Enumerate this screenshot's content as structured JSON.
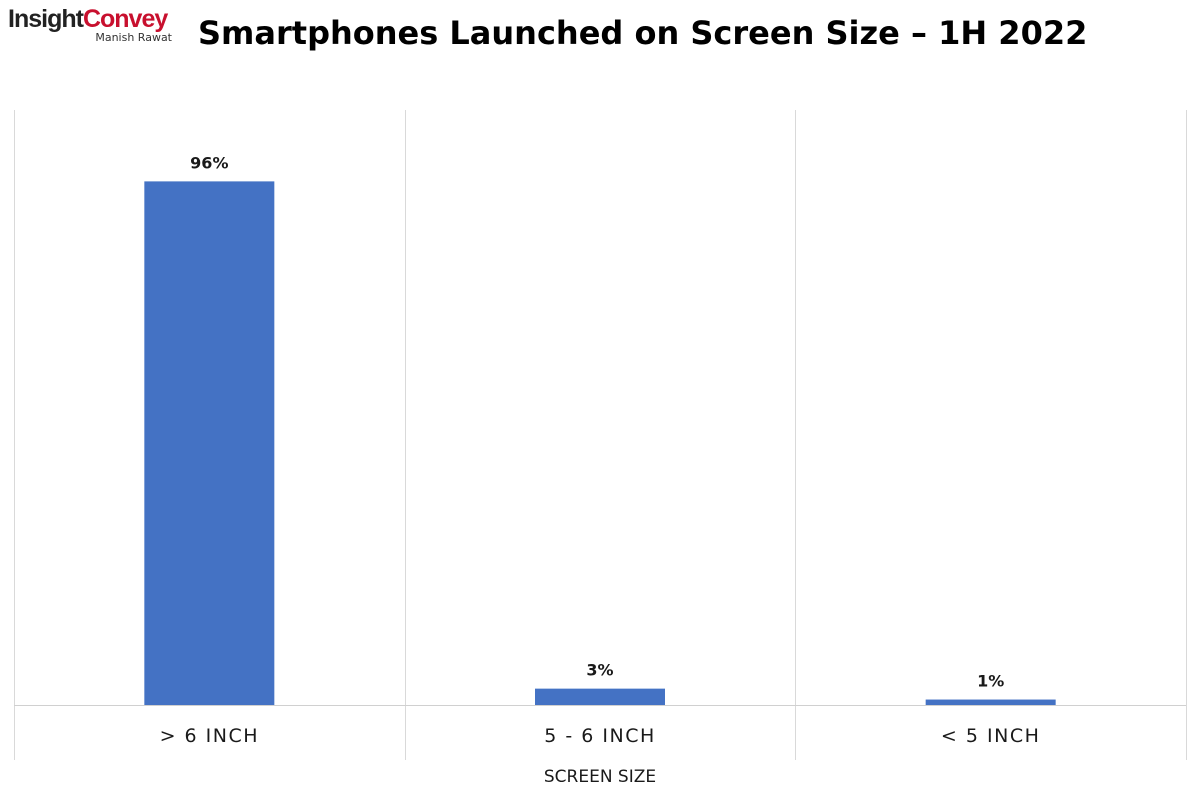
{
  "branding": {
    "name_part1": "Insight",
    "name_part2": "Convey",
    "author": "Manish Rawat",
    "accent_color": "#c8102e"
  },
  "chart_data": {
    "type": "bar",
    "title": "Smartphones Launched on Screen Size – 1H 2022",
    "categories": [
      "> 6 INCH",
      "5 - 6 INCH",
      "< 5 INCH"
    ],
    "values": [
      96,
      3,
      1
    ],
    "value_labels": [
      "96%",
      "3%",
      "1%"
    ],
    "unit": "%",
    "xlabel": "SCREEN SIZE",
    "ylabel": "",
    "ylim": [
      0,
      100
    ],
    "bar_color": "#4472c4",
    "grid": "vertical category separators",
    "legend": "none"
  }
}
